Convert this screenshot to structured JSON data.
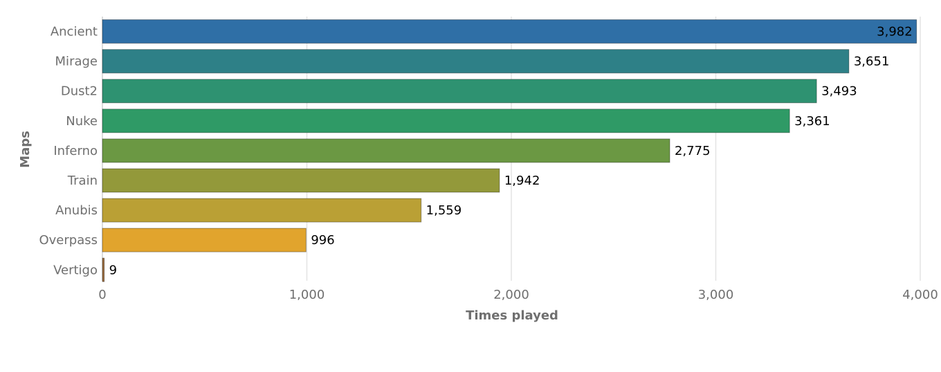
{
  "chart_data": {
    "type": "bar",
    "orientation": "horizontal",
    "categories": [
      "Ancient",
      "Mirage",
      "Dust2",
      "Nuke",
      "Inferno",
      "Train",
      "Anubis",
      "Overpass",
      "Vertigo"
    ],
    "values": [
      3982,
      3651,
      3493,
      3361,
      2775,
      1942,
      1559,
      996,
      9
    ],
    "value_labels": [
      "3,982",
      "3,651",
      "3,493",
      "3,361",
      "2,775",
      "1,942",
      "1,559",
      "996",
      "9"
    ],
    "colors": [
      "#2f6fa6",
      "#2e8087",
      "#2e9271",
      "#2f9a66",
      "#6b9843",
      "#93993a",
      "#baa035",
      "#e1a42d",
      "#9a6a3c"
    ],
    "xlabel": "Times played",
    "ylabel": "Maps",
    "xlim": [
      0,
      4000
    ],
    "xticks": [
      0,
      1000,
      2000,
      3000,
      4000
    ],
    "xtick_labels": [
      "0",
      "1,000",
      "2,000",
      "3,000",
      "4,000"
    ],
    "grid": true,
    "legend": "none"
  }
}
